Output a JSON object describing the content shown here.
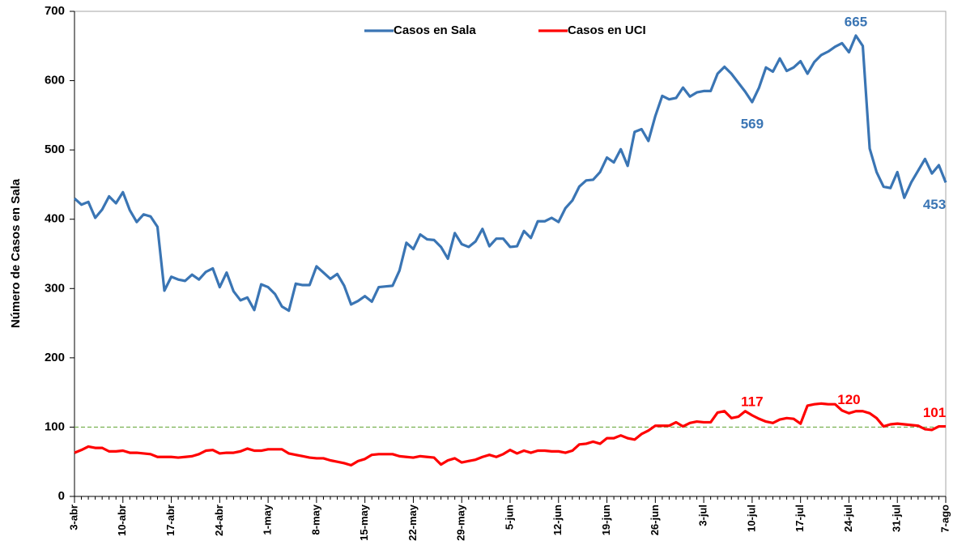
{
  "chart_data": {
    "type": "line",
    "y_label": "Número de Casos en Sala",
    "categories": [
      "3-abr",
      null,
      null,
      null,
      null,
      null,
      null,
      "10-abr",
      null,
      null,
      null,
      null,
      null,
      null,
      "17-abr",
      null,
      null,
      null,
      null,
      null,
      null,
      "24-abr",
      null,
      null,
      null,
      null,
      null,
      null,
      "1-may",
      null,
      null,
      null,
      null,
      null,
      null,
      "8-may",
      null,
      null,
      null,
      null,
      null,
      null,
      "15-may",
      null,
      null,
      null,
      null,
      null,
      null,
      "22-may",
      null,
      null,
      null,
      null,
      null,
      null,
      "29-may",
      null,
      null,
      null,
      null,
      null,
      null,
      "5-jun",
      null,
      null,
      null,
      null,
      null,
      null,
      "12-jun",
      null,
      null,
      null,
      null,
      null,
      null,
      "19-jun",
      null,
      null,
      null,
      null,
      null,
      null,
      "26-jun",
      null,
      null,
      null,
      null,
      null,
      null,
      "3-jul",
      null,
      null,
      null,
      null,
      null,
      null,
      "10-jul",
      null,
      null,
      null,
      null,
      null,
      null,
      "17-jul",
      null,
      null,
      null,
      null,
      null,
      null,
      "24-jul",
      null,
      null,
      null,
      null,
      null,
      null,
      "31-jul",
      null,
      null,
      null,
      null,
      null,
      null,
      "7-ago"
    ],
    "series": [
      {
        "name": "Casos en Sala",
        "color": "#3a75b4",
        "values": [
          430,
          421,
          425,
          402,
          414,
          433,
          423,
          439,
          413,
          396,
          407,
          404,
          389,
          297,
          317,
          313,
          311,
          320,
          313,
          324,
          329,
          302,
          323,
          296,
          283,
          287,
          269,
          306,
          302,
          292,
          274,
          268,
          307,
          305,
          305,
          332,
          323,
          314,
          321,
          304,
          277,
          282,
          289,
          281,
          302,
          303,
          304,
          326,
          366,
          357,
          378,
          371,
          370,
          360,
          343,
          380,
          364,
          360,
          368,
          386,
          361,
          372,
          372,
          360,
          361,
          383,
          373,
          397,
          397,
          402,
          396,
          416,
          427,
          447,
          456,
          457,
          468,
          489,
          482,
          501,
          477,
          526,
          530,
          513,
          549,
          578,
          573,
          575,
          590,
          577,
          583,
          585,
          585,
          610,
          620,
          610,
          597,
          584,
          569,
          590,
          619,
          613,
          632,
          614,
          619,
          628,
          610,
          627,
          637,
          642,
          649,
          654,
          641,
          665,
          650,
          502,
          468,
          447,
          445,
          468,
          431,
          453,
          470,
          487,
          466,
          478,
          453
        ],
        "value_labels": [
          null,
          null,
          null,
          null,
          null,
          null,
          null,
          null,
          null,
          null,
          null,
          null,
          null,
          null,
          null,
          null,
          null,
          null,
          null,
          null,
          null,
          null,
          null,
          null,
          null,
          null,
          null,
          null,
          null,
          null,
          null,
          null,
          null,
          null,
          null,
          null,
          null,
          null,
          null,
          null,
          null,
          null,
          null,
          null,
          null,
          null,
          null,
          null,
          null,
          null,
          null,
          null,
          null,
          null,
          null,
          null,
          null,
          null,
          null,
          null,
          null,
          null,
          null,
          null,
          null,
          null,
          null,
          null,
          null,
          null,
          null,
          null,
          null,
          null,
          null,
          null,
          null,
          null,
          null,
          null,
          null,
          null,
          null,
          null,
          null,
          null,
          null,
          null,
          null,
          null,
          null,
          null,
          null,
          null,
          null,
          null,
          null,
          null,
          "569",
          null,
          null,
          null,
          null,
          null,
          null,
          null,
          null,
          null,
          null,
          null,
          null,
          null,
          null,
          "665",
          null,
          null,
          null,
          null,
          null,
          null,
          null,
          null,
          null,
          null,
          null,
          null,
          "453"
        ]
      },
      {
        "name": "Casos en UCI",
        "color": "#ff0000",
        "values": [
          63,
          67,
          72,
          70,
          70,
          65,
          65,
          66,
          63,
          63,
          62,
          61,
          57,
          57,
          57,
          56,
          57,
          58,
          61,
          66,
          67,
          62,
          63,
          63,
          65,
          69,
          66,
          66,
          68,
          68,
          68,
          62,
          60,
          58,
          56,
          55,
          55,
          52,
          50,
          48,
          45,
          51,
          54,
          60,
          61,
          61,
          61,
          58,
          57,
          56,
          58,
          57,
          56,
          46,
          52,
          55,
          49,
          51,
          53,
          57,
          60,
          57,
          61,
          67,
          62,
          66,
          63,
          66,
          66,
          65,
          65,
          63,
          66,
          75,
          76,
          79,
          76,
          84,
          84,
          88,
          84,
          82,
          90,
          95,
          102,
          102,
          102,
          107,
          101,
          106,
          108,
          107,
          107,
          121,
          123,
          113,
          115,
          123,
          117,
          112,
          108,
          106,
          111,
          113,
          112,
          105,
          131,
          133,
          134,
          133,
          133,
          124,
          120,
          123,
          123,
          120,
          113,
          101,
          104,
          105,
          104,
          103,
          102,
          97,
          96,
          101,
          101
        ],
        "value_labels": [
          null,
          null,
          null,
          null,
          null,
          null,
          null,
          null,
          null,
          null,
          null,
          null,
          null,
          null,
          null,
          null,
          null,
          null,
          null,
          null,
          null,
          null,
          null,
          null,
          null,
          null,
          null,
          null,
          null,
          null,
          null,
          null,
          null,
          null,
          null,
          null,
          null,
          null,
          null,
          null,
          null,
          null,
          null,
          null,
          null,
          null,
          null,
          null,
          null,
          null,
          null,
          null,
          null,
          null,
          null,
          null,
          null,
          null,
          null,
          null,
          null,
          null,
          null,
          null,
          null,
          null,
          null,
          null,
          null,
          null,
          null,
          null,
          null,
          null,
          null,
          null,
          null,
          null,
          null,
          null,
          null,
          null,
          null,
          null,
          null,
          null,
          null,
          null,
          null,
          null,
          null,
          null,
          null,
          null,
          null,
          null,
          null,
          null,
          "117",
          null,
          null,
          null,
          null,
          null,
          null,
          null,
          null,
          null,
          null,
          null,
          null,
          null,
          "120",
          null,
          null,
          null,
          null,
          null,
          null,
          null,
          null,
          null,
          null,
          null,
          null,
          null,
          "101"
        ]
      }
    ],
    "ylim": [
      0,
      700
    ],
    "yticks": [
      0,
      100,
      200,
      300,
      400,
      500,
      600,
      700
    ],
    "reference_line": {
      "value": 100,
      "color": "#70ad47"
    },
    "legend": "top"
  }
}
